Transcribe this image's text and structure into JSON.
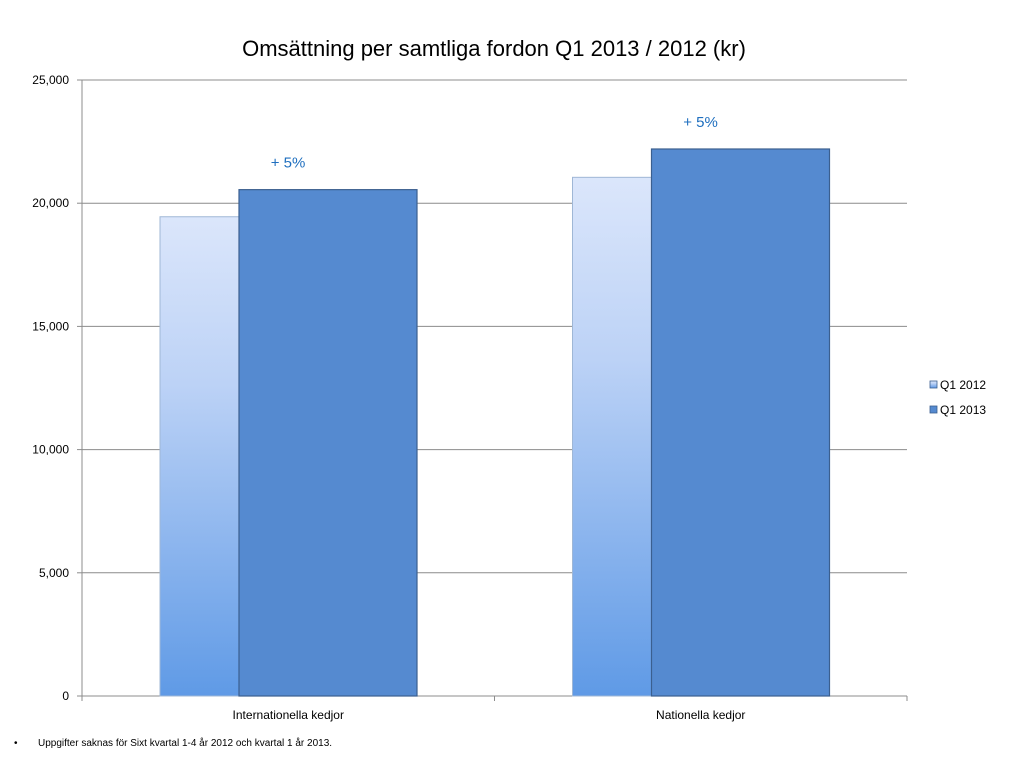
{
  "chart_data": {
    "type": "bar",
    "title": "Omsättning per samtliga fordon Q1 2013 / 2012 (kr)",
    "categories": [
      "Internationella kedjor",
      "Nationella kedjor"
    ],
    "series": [
      {
        "name": "Q1 2012",
        "values": [
          19450,
          21050
        ],
        "color": "#8fb4ec"
      },
      {
        "name": "Q1 2013",
        "values": [
          20550,
          22200
        ],
        "color": "#558ad0"
      }
    ],
    "ylim": [
      0,
      25000
    ],
    "yticks": [
      0,
      5000,
      10000,
      15000,
      20000,
      25000
    ],
    "ytick_labels": [
      "0",
      "5,000",
      "10,000",
      "15,000",
      "20,000",
      "25,000"
    ],
    "annotations": [
      "+ 5%",
      "+ 5%"
    ],
    "grid": true,
    "legend_position": "right"
  },
  "footnote": {
    "bullet": "•",
    "text": "Uppgifter saknas för Sixt kvartal 1-4 år 2012 och kvartal 1 år 2013."
  }
}
